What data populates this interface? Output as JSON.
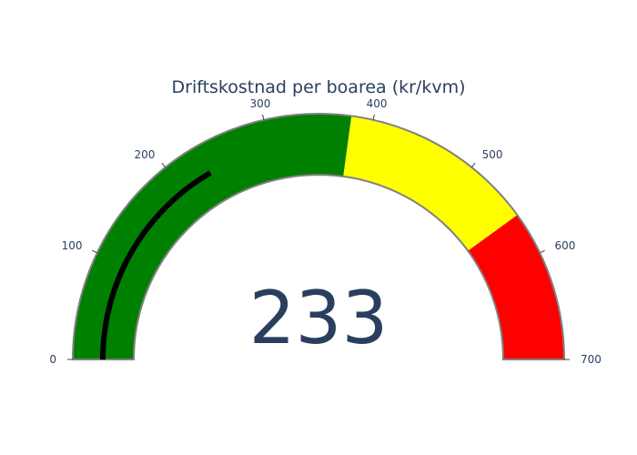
{
  "chart_data": {
    "type": "gauge",
    "title": "Driftskostnad per boarea (kr/kvm)",
    "value": 233,
    "value_label": "233",
    "range": [
      0,
      700
    ],
    "ticks": [
      {
        "value": 0,
        "label": "0"
      },
      {
        "value": 100,
        "label": "100"
      },
      {
        "value": 200,
        "label": "200"
      },
      {
        "value": 300,
        "label": "300"
      },
      {
        "value": 400,
        "label": "400"
      },
      {
        "value": 500,
        "label": "500"
      },
      {
        "value": 600,
        "label": "600"
      },
      {
        "value": 700,
        "label": "700"
      }
    ],
    "steps": [
      {
        "range": [
          0,
          380
        ],
        "color": "#008000"
      },
      {
        "range": [
          380,
          560
        ],
        "color": "#ffff00"
      },
      {
        "range": [
          560,
          700
        ],
        "color": "#ff0000"
      }
    ],
    "bar_color": "#000000",
    "outline_color": "#808080",
    "text_color": "#2a3f5f"
  }
}
